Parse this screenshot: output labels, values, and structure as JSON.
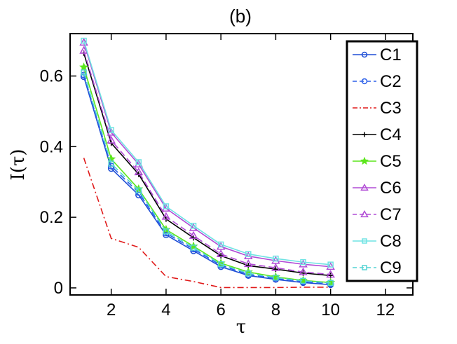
{
  "chart_data": {
    "type": "line",
    "title": "(b)",
    "xlabel": "τ",
    "ylabel": "I(τ)",
    "xlim": [
      0.5,
      13
    ],
    "ylim": [
      -0.02,
      0.72
    ],
    "xticks": [
      2,
      4,
      6,
      8,
      10,
      12
    ],
    "yticks": [
      0,
      0.2,
      0.4,
      0.6
    ],
    "xtick_labels": [
      "2",
      "4",
      "6",
      "8",
      "10",
      "12"
    ],
    "ytick_labels": [
      "0",
      "0.2",
      "0.4",
      "0.6"
    ],
    "legend_position": "right, full height",
    "x": [
      1,
      2,
      3,
      4,
      5,
      6,
      7,
      8,
      9,
      10
    ],
    "series": [
      {
        "name": "C1",
        "color": "#1f4fd6",
        "dash": "solid",
        "marker": "circle",
        "values": [
          0.598,
          0.338,
          0.263,
          0.15,
          0.105,
          0.06,
          0.035,
          0.024,
          0.015,
          0.009
        ]
      },
      {
        "name": "C2",
        "color": "#2a5ee8",
        "dash": "dashed",
        "marker": "circle",
        "values": [
          0.603,
          0.345,
          0.27,
          0.155,
          0.11,
          0.064,
          0.038,
          0.027,
          0.018,
          0.012
        ]
      },
      {
        "name": "C3",
        "color": "#e01a1a",
        "dash": "dashdot",
        "marker": "none",
        "values": [
          0.368,
          0.14,
          0.115,
          0.032,
          0.018,
          0.001,
          0.001,
          0.001,
          0.002,
          0.002
        ]
      },
      {
        "name": "C4",
        "color": "#000000",
        "dash": "solid",
        "marker": "plus",
        "values": [
          0.665,
          0.41,
          0.322,
          0.195,
          0.142,
          0.091,
          0.063,
          0.053,
          0.042,
          0.035
        ]
      },
      {
        "name": "C5",
        "color": "#5ce61c",
        "dash": "solid",
        "marker": "star",
        "values": [
          0.625,
          0.365,
          0.28,
          0.165,
          0.118,
          0.07,
          0.045,
          0.031,
          0.021,
          0.015
        ]
      },
      {
        "name": "C6",
        "color": "#b14cd6",
        "dash": "solid",
        "marker": "triangle",
        "values": [
          0.695,
          0.44,
          0.35,
          0.225,
          0.17,
          0.117,
          0.09,
          0.077,
          0.067,
          0.06
        ]
      },
      {
        "name": "C7",
        "color": "#b14cd6",
        "dash": "dashed",
        "marker": "triangle",
        "values": [
          0.672,
          0.418,
          0.328,
          0.202,
          0.148,
          0.096,
          0.068,
          0.057,
          0.045,
          0.038
        ]
      },
      {
        "name": "C8",
        "color": "#6fe3e3",
        "dash": "solid",
        "marker": "square",
        "values": [
          0.7,
          0.447,
          0.356,
          0.231,
          0.176,
          0.123,
          0.096,
          0.083,
          0.073,
          0.066
        ]
      },
      {
        "name": "C9",
        "color": "#52d4d4",
        "dash": "dashed",
        "marker": "square",
        "values": [
          0.61,
          0.352,
          0.276,
          0.16,
          0.114,
          0.067,
          0.041,
          0.029,
          0.02,
          0.014
        ]
      }
    ]
  }
}
